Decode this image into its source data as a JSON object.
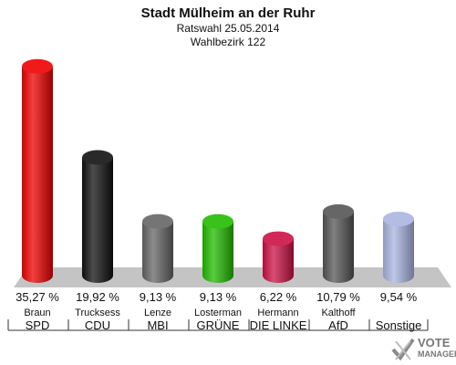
{
  "header": {
    "title": "Stadt Mülheim an der Ruhr",
    "subtitle1": "Ratswahl 25.05.2014",
    "subtitle2": "Wahlbezirk 122"
  },
  "chart_data": {
    "type": "bar",
    "categories": [
      "SPD",
      "CDU",
      "MBI",
      "GRÜNE",
      "DIE LINKE",
      "AfD",
      "Sonstige"
    ],
    "candidates": [
      "Braun",
      "Trucksess",
      "Lenze",
      "Losterman",
      "Hermann",
      "Kalthoff",
      ""
    ],
    "values": [
      35.27,
      19.92,
      9.13,
      9.13,
      6.22,
      10.79,
      9.54
    ],
    "value_labels": [
      "35,27 %",
      "19,92 %",
      "9,13 %",
      "9,13 %",
      "6,22 %",
      "10,79 %",
      "9,54 %"
    ],
    "colors": [
      "#ee0000",
      "#111111",
      "#666666",
      "#22bb00",
      "#cc1144",
      "#555555",
      "#aab4e0"
    ],
    "ylim": [
      0,
      36
    ]
  },
  "logo": {
    "line1": "VOTE",
    "line2": "MANAGER"
  }
}
